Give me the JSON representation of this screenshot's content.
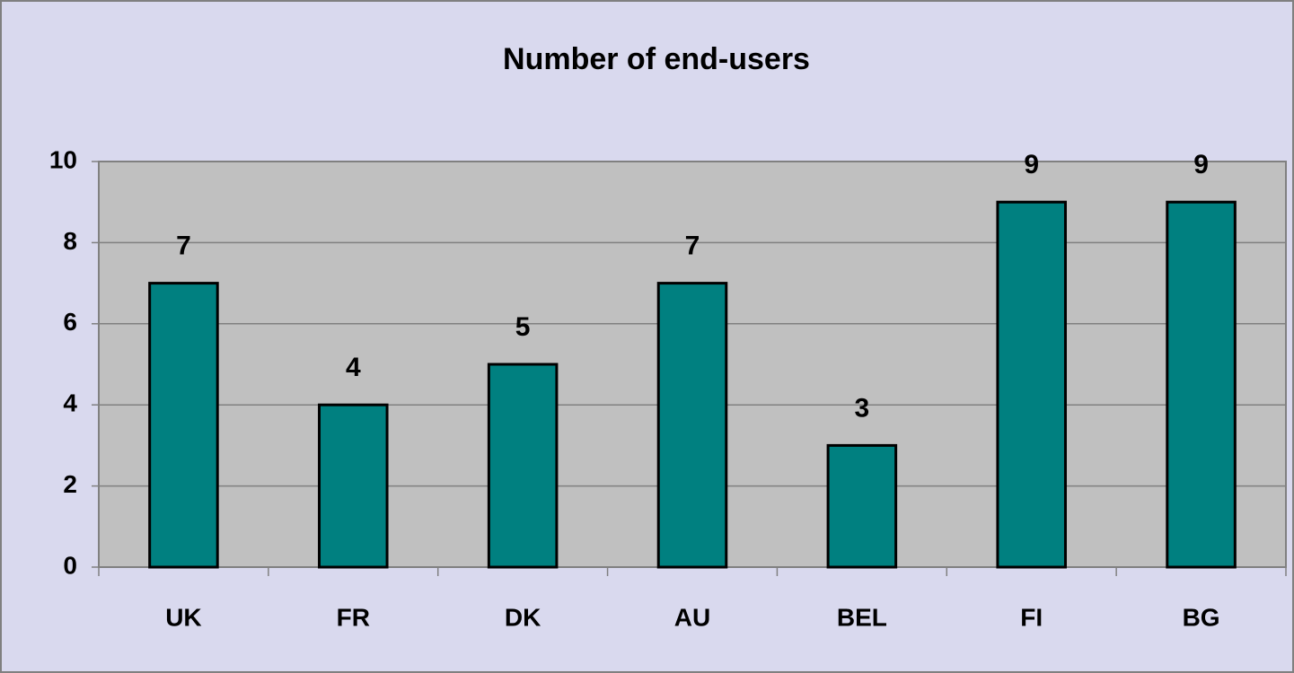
{
  "chart_data": {
    "type": "bar",
    "title": "Number of end-users",
    "categories": [
      "UK",
      "FR",
      "DK",
      "AU",
      "BEL",
      "FI",
      "BG"
    ],
    "values": [
      7,
      4,
      5,
      7,
      3,
      9,
      9
    ],
    "color": "#008080",
    "ylim": [
      0,
      10
    ],
    "yticks": [
      0,
      2,
      4,
      6,
      8,
      10
    ],
    "grid": true
  }
}
